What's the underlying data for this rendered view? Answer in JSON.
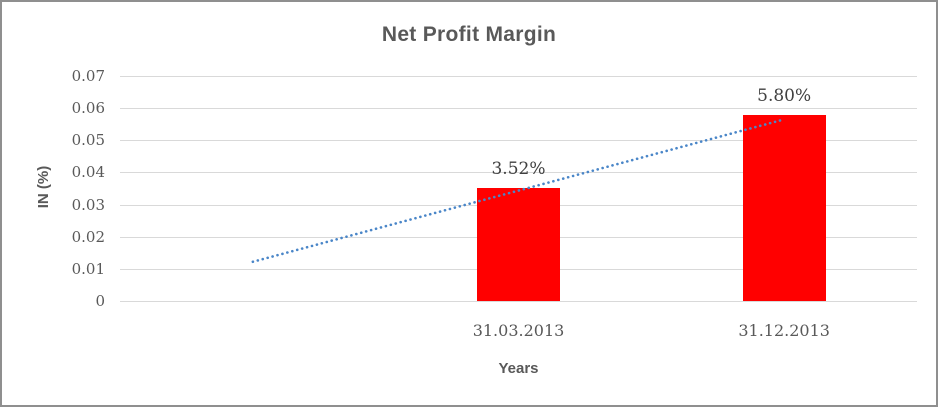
{
  "chart_data": {
    "type": "bar",
    "title": "Net Profit Margin",
    "xlabel": "Years",
    "ylabel": "IN (%)",
    "categories": [
      "",
      "31.03.2013",
      "31.12.2013"
    ],
    "values": [
      null,
      0.0352,
      0.058
    ],
    "data_labels": [
      "",
      "3.52%",
      "5.80%"
    ],
    "ylim": [
      0,
      0.07
    ],
    "yticks": [
      "0",
      "0.01",
      "0.02",
      "0.03",
      "0.04",
      "0.05",
      "0.06",
      "0.07"
    ],
    "grid": true,
    "legend_position": "none",
    "bar_color": "#FF0000",
    "trendline": {
      "color": "#4A86C8",
      "style": "dotted",
      "start": {
        "slot": 0,
        "value": 0.0122
      },
      "end": {
        "slot": 2,
        "value": 0.0565
      }
    },
    "colors": {
      "grid": "#D9D9D9",
      "text": "#595959",
      "data_label": "#404040",
      "background": "#FFFFFF",
      "border": "#8F8F8F"
    }
  }
}
